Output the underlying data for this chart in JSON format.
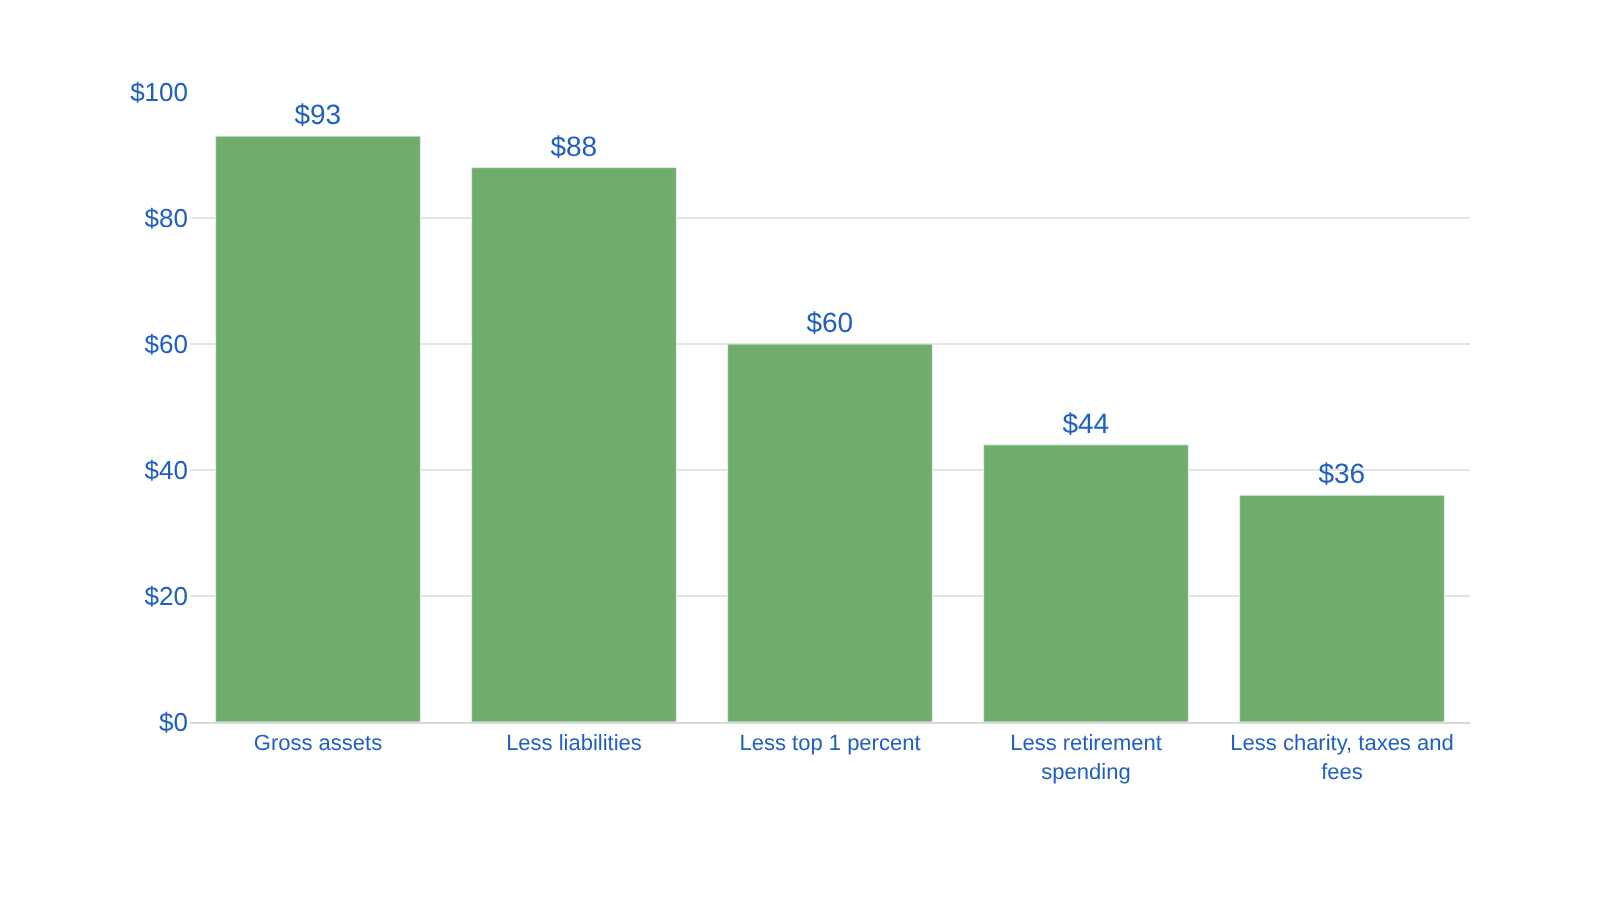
{
  "chart_data": {
    "type": "bar",
    "categories": [
      "Gross assets",
      "Less liabilities",
      "Less top 1 percent",
      "Less retirement spending",
      "Less charity, taxes and fees"
    ],
    "values": [
      93,
      88,
      60,
      44,
      36
    ],
    "value_labels": [
      "$93",
      "$88",
      "$60",
      "$44",
      "$36"
    ],
    "color": "#70ad6a",
    "ylim": [
      0,
      100
    ],
    "yticks": [
      {
        "value": 0,
        "label": "$0"
      },
      {
        "value": 20,
        "label": "$20"
      },
      {
        "value": 40,
        "label": "$40"
      },
      {
        "value": 60,
        "label": "$60"
      },
      {
        "value": 80,
        "label": "$80"
      },
      {
        "value": 100,
        "label": "$100"
      }
    ],
    "grid": "y"
  }
}
